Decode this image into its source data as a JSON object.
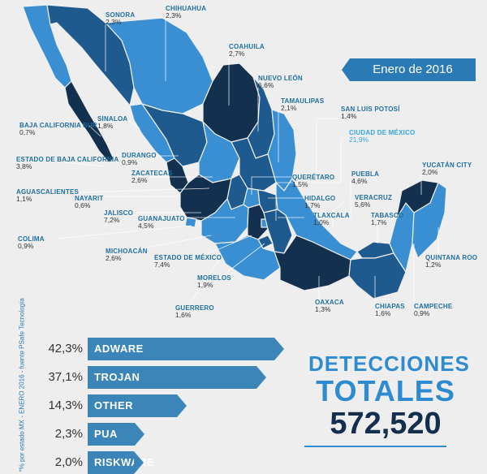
{
  "date_label": "Enero de 2016",
  "side_note": "*% por estado MX - ENERO 2016 - fuente PSafe Tecnología",
  "states": [
    {
      "key": "sonora",
      "name": "SONORA",
      "pct": "2,3%"
    },
    {
      "key": "chihuahua",
      "name": "CHIHUAHUA",
      "pct": "2,3%"
    },
    {
      "key": "coahuila",
      "name": "COAHUILA",
      "pct": "2,7%"
    },
    {
      "key": "nuevo_leon",
      "name": "NUEVO LEÓN",
      "pct": "6,6%"
    },
    {
      "key": "tamaulipas",
      "name": "TAMAULIPAS",
      "pct": "2,1%"
    },
    {
      "key": "baja_california_sur",
      "name": "BAJA CALIFORNIA SUR",
      "pct": "0,7%"
    },
    {
      "key": "sinaloa",
      "name": "SINALOA",
      "pct": "1,8%"
    },
    {
      "key": "san_luis_potosi",
      "name": "SAN LUIS POTOSÍ",
      "pct": "1,4%"
    },
    {
      "key": "ciudad_de_mexico",
      "name": "CIUDAD DE MÉXICO",
      "pct": "21,9%"
    },
    {
      "key": "durango",
      "name": "DURANGO",
      "pct": "0,9%"
    },
    {
      "key": "estado_baja_california",
      "name": "ESTADO DE BAJA CALIFORNIA",
      "pct": "3,8%"
    },
    {
      "key": "zacatecas",
      "name": "ZACATECAS",
      "pct": "2,6%"
    },
    {
      "key": "queretaro",
      "name": "QUERÉTARO",
      "pct": "1,5%"
    },
    {
      "key": "puebla",
      "name": "PUEBLA",
      "pct": "4,6%"
    },
    {
      "key": "yucatan",
      "name": "YUCATÁN CITY",
      "pct": "2,0%"
    },
    {
      "key": "aguascalientes",
      "name": "AGUASCALIENTES",
      "pct": "1,1%"
    },
    {
      "key": "nayarit",
      "name": "NAYARIT",
      "pct": "0,6%"
    },
    {
      "key": "hidalgo",
      "name": "HIDALGO",
      "pct": "1,7%"
    },
    {
      "key": "veracruz",
      "name": "VERACRUZ",
      "pct": "5,6%"
    },
    {
      "key": "jalisco",
      "name": "JALISCO",
      "pct": "7,2%"
    },
    {
      "key": "guanajuato",
      "name": "GUANAJUATO",
      "pct": "4,5%"
    },
    {
      "key": "tlaxcala",
      "name": "TLAXCALA",
      "pct": "1,0%"
    },
    {
      "key": "tabasco",
      "name": "TABASCO",
      "pct": "1,7%"
    },
    {
      "key": "colima",
      "name": "COLIMA",
      "pct": "0,9%"
    },
    {
      "key": "michoacan",
      "name": "MICHOACÁN",
      "pct": "2,6%"
    },
    {
      "key": "estado_mexico",
      "name": "ESTADO DE MÉXICO",
      "pct": "7,4%"
    },
    {
      "key": "quintana_roo",
      "name": "QUINTANA ROO",
      "pct": "1,2%"
    },
    {
      "key": "morelos",
      "name": "MORELOS",
      "pct": "1,9%"
    },
    {
      "key": "guerrero",
      "name": "GUERRERO",
      "pct": "1,6%"
    },
    {
      "key": "oaxaca",
      "name": "OAXACA",
      "pct": "1,3%"
    },
    {
      "key": "chiapas",
      "name": "CHIAPAS",
      "pct": "1,6%"
    },
    {
      "key": "campeche",
      "name": "CAMPECHE",
      "pct": "0,9%"
    }
  ],
  "threats": [
    {
      "pct_label": "42,3%",
      "label": "ADWARE",
      "value": 42.3
    },
    {
      "pct_label": "37,1%",
      "label": "TROJAN",
      "value": 37.1
    },
    {
      "pct_label": "14,3%",
      "label": "OTHER",
      "value": 14.3
    },
    {
      "pct_label": "2,3%",
      "label": "PUA",
      "value": 2.3
    },
    {
      "pct_label": "2,0%",
      "label": "RISKWARE",
      "value": 2.0
    }
  ],
  "totals": {
    "title": "DETECCIONES",
    "subtitle": "TOTALES",
    "value": "572,520"
  },
  "colors": {
    "dark": "#13304f",
    "mid": "#1f5a8e",
    "light": "#3a8fd3",
    "bar": "#3b85b9",
    "accent": "#2e8bd0"
  }
}
